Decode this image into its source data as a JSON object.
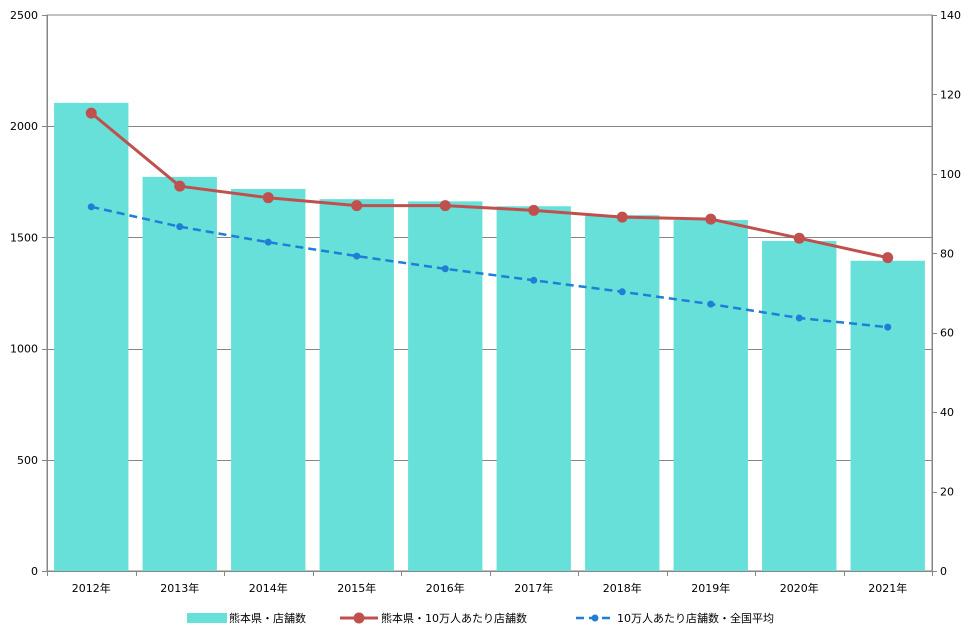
{
  "chart_data": {
    "type": "bar",
    "categories": [
      "2012年",
      "2013年",
      "2014年",
      "2015年",
      "2016年",
      "2017年",
      "2018年",
      "2019年",
      "2020年",
      "2021年"
    ],
    "series": [
      {
        "name": "熊本県・店舗数",
        "type": "bar",
        "axis": "left",
        "color": "#66e0d8",
        "values": [
          2105,
          1772,
          1718,
          1672,
          1662,
          1640,
          1600,
          1578,
          1484,
          1395
        ]
      },
      {
        "name": "熊本県・10万人あたり店舗数",
        "type": "line",
        "axis": "right",
        "color": "#c0504d",
        "style": "solid",
        "values": [
          115.3,
          96.9,
          94.0,
          92.0,
          92.0,
          90.8,
          89.1,
          88.6,
          83.8,
          78.9
        ]
      },
      {
        "name": "10万人あたり店舗数・全国平均",
        "type": "line",
        "axis": "right",
        "color": "#1f7fd6",
        "style": "dashed",
        "values": [
          91.7,
          86.7,
          82.8,
          79.3,
          76.1,
          73.2,
          70.3,
          67.2,
          63.7,
          61.4
        ]
      }
    ],
    "ylim_left": [
      0,
      2500
    ],
    "yticks_left": [
      0,
      500,
      1000,
      1500,
      2000,
      2500
    ],
    "ylim_right": [
      0,
      140
    ],
    "yticks_right": [
      0,
      20,
      40,
      60,
      80,
      100,
      120,
      140
    ],
    "grid": true,
    "legend": "bottom",
    "title": "",
    "xlabel": "",
    "ylabel": ""
  }
}
